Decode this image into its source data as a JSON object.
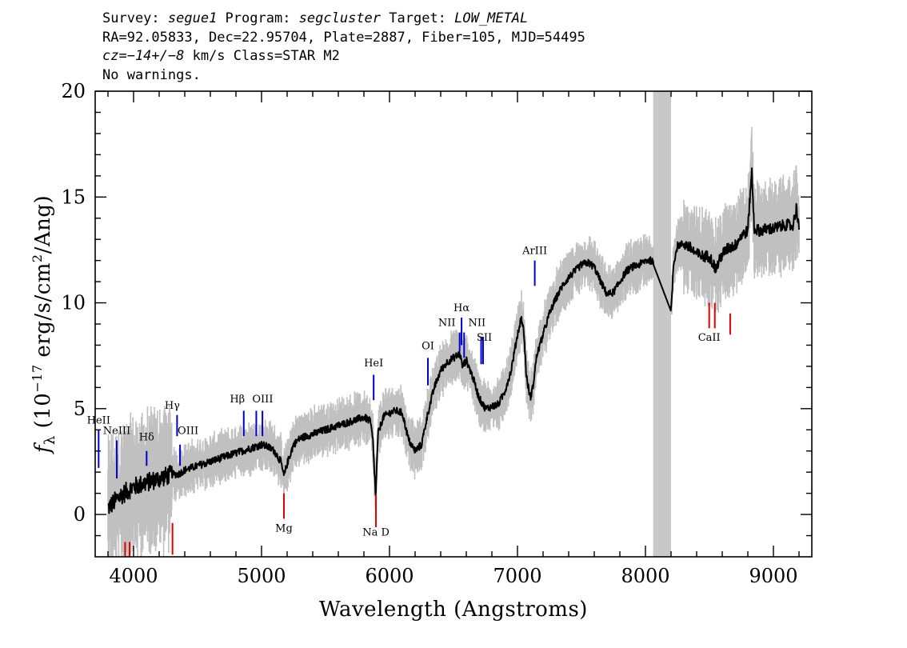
{
  "header": {
    "line1": {
      "survey_label": "Survey: ",
      "survey": "segue1",
      "program_label": " Program: ",
      "program": "segcluster",
      "target_label": " Target: ",
      "target": "LOW_METAL"
    },
    "line2": "RA=92.05833, Dec=22.95704, Plate=2887, Fiber=105, MJD=54495",
    "line3": {
      "cz": "cz=−14+/−8",
      "rest": " km/s Class=STAR M2"
    },
    "line4": "No warnings."
  },
  "chart_data": {
    "type": "line",
    "xlabel": "Wavelength (Angstroms)",
    "ylabel": "f_λ (10^-17 erg/s/cm^2/Ang)",
    "xlim": [
      3700,
      9300
    ],
    "ylim": [
      -2,
      20
    ],
    "x_ticks": [
      4000,
      5000,
      6000,
      7000,
      8000,
      9000
    ],
    "y_ticks": [
      0,
      5,
      10,
      15,
      20
    ],
    "masked_band": [
      8060,
      8200
    ],
    "series": [
      {
        "color": "#000000",
        "x": [
          3800,
          3850,
          3900,
          3950,
          4000,
          4050,
          4100,
          4150,
          4200,
          4250,
          4300,
          4350,
          4400,
          4450,
          4500,
          4550,
          4600,
          4650,
          4700,
          4750,
          4800,
          4850,
          4900,
          4950,
          5000,
          5050,
          5100,
          5150,
          5175,
          5200,
          5250,
          5300,
          5350,
          5400,
          5450,
          5500,
          5550,
          5600,
          5650,
          5700,
          5750,
          5800,
          5850,
          5870,
          5892,
          5910,
          5950,
          6000,
          6050,
          6100,
          6150,
          6200,
          6250,
          6300,
          6350,
          6400,
          6450,
          6500,
          6550,
          6570,
          6600,
          6650,
          6700,
          6750,
          6800,
          6850,
          6900,
          6950,
          7000,
          7030,
          7050,
          7070,
          7100,
          7120,
          7150,
          7200,
          7250,
          7300,
          7350,
          7400,
          7450,
          7500,
          7550,
          7600,
          7650,
          7700,
          7750,
          7800,
          7850,
          7900,
          7950,
          8000,
          8050,
          8200,
          8220,
          8250,
          8300,
          8350,
          8400,
          8450,
          8500,
          8550,
          8600,
          8650,
          8700,
          8750,
          8800,
          8830,
          8850,
          8900,
          8950,
          9000,
          9050,
          9100,
          9150,
          9180,
          9200
        ],
        "values": [
          0.3,
          0.6,
          0.9,
          1.1,
          1.3,
          1.4,
          1.5,
          1.6,
          1.7,
          1.8,
          1.9,
          1.9,
          2.1,
          2.2,
          2.3,
          2.4,
          2.5,
          2.6,
          2.7,
          2.8,
          2.9,
          3.0,
          3.1,
          3.2,
          3.3,
          3.2,
          3.0,
          2.5,
          1.8,
          2.4,
          3.3,
          3.6,
          3.7,
          3.8,
          3.9,
          4.0,
          4.1,
          4.2,
          4.3,
          4.4,
          4.5,
          4.6,
          4.4,
          3.5,
          0.8,
          3.8,
          4.6,
          4.8,
          4.9,
          4.8,
          3.5,
          3.0,
          3.3,
          4.8,
          6.0,
          6.8,
          7.2,
          7.4,
          7.6,
          7.0,
          7.3,
          6.5,
          5.5,
          5.0,
          5.1,
          5.2,
          5.8,
          6.8,
          8.5,
          9.3,
          8.6,
          6.5,
          5.5,
          6.0,
          7.5,
          8.5,
          9.5,
          10.2,
          10.8,
          11.2,
          11.5,
          11.8,
          11.9,
          11.7,
          11.0,
          10.4,
          10.5,
          11.0,
          11.5,
          11.7,
          11.8,
          12.0,
          12.0,
          9.6,
          11.9,
          12.7,
          12.8,
          12.6,
          12.3,
          12.2,
          12.2,
          11.6,
          12.3,
          12.6,
          12.7,
          13.2,
          13.4,
          16.3,
          13.5,
          13.4,
          13.5,
          13.5,
          13.6,
          13.7,
          13.6,
          14.5,
          13.6
        ]
      }
    ],
    "emission_lines": [
      {
        "name": "HeII",
        "x": 3727
      },
      {
        "name": "NeIII",
        "x": 3869
      },
      {
        "name": "Hδ",
        "x": 4102
      },
      {
        "name": "Hγ",
        "x": 4340
      },
      {
        "name": "OIII",
        "x": 4363
      },
      {
        "name": "Hβ",
        "x": 4861
      },
      {
        "name": "OIII",
        "x": 4959
      },
      {
        "name": "OIII",
        "x": 5007
      },
      {
        "name": "HeI",
        "x": 5876
      },
      {
        "name": "OI",
        "x": 6300
      },
      {
        "name": "NII",
        "x": 6548
      },
      {
        "name": "Hα",
        "x": 6563
      },
      {
        "name": "NII",
        "x": 6583
      },
      {
        "name": "SII",
        "x": 6716
      },
      {
        "name": "SII",
        "x": 6731
      },
      {
        "name": "ArIII",
        "x": 7135
      }
    ],
    "absorption_lines": [
      {
        "name": "",
        "x": 3934
      },
      {
        "name": "",
        "x": 3969
      },
      {
        "name": "",
        "x": 4304
      },
      {
        "name": "Mg",
        "x": 5175
      },
      {
        "name": "Na D",
        "x": 5894
      },
      {
        "name": "CaII",
        "x": 8498
      },
      {
        "name": "",
        "x": 8542
      },
      {
        "name": "",
        "x": 8662
      }
    ],
    "colors": {
      "spectrum": "#000000",
      "noise": "#c0c0c0",
      "masked": "#c8c8c8",
      "emission": "#0000cc",
      "absorption": "#dd0000"
    }
  }
}
